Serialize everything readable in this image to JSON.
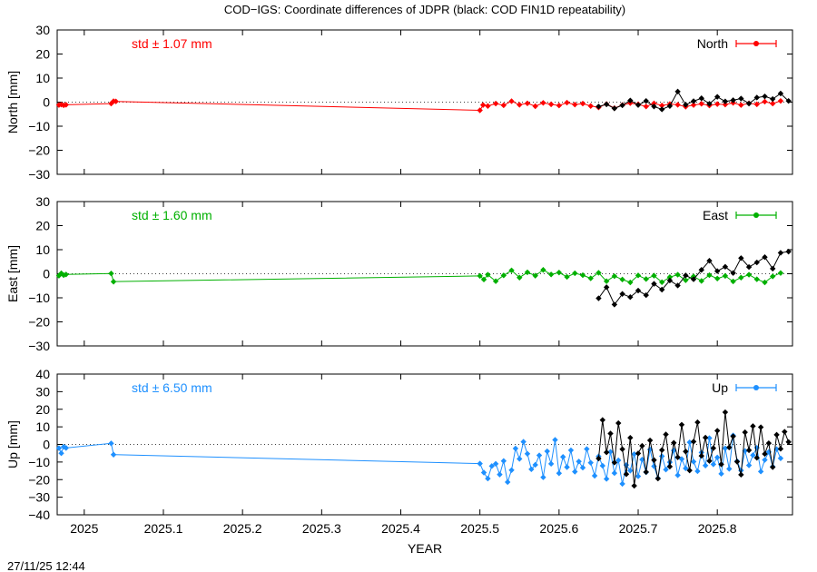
{
  "title": "COD−IGS: Coordinate differences of JDPR (black: COD FIN1D repeatability)",
  "timestamp": "27/11/25 12:44",
  "xlabel": "YEAR",
  "x_ticks": [
    "2025",
    "2025.1",
    "2025.2",
    "2025.3",
    "2025.4",
    "2025.5",
    "2025.6",
    "2025.7",
    "2025.8"
  ],
  "chart_data": [
    {
      "type": "line",
      "panel": "north",
      "ylabel": "North [mm]",
      "ylim": [
        -30,
        30
      ],
      "y_ticks": [
        "30",
        "20",
        "10",
        "0",
        "−10",
        "−20",
        "−30"
      ],
      "xlim": [
        2024.9658,
        2025.895
      ],
      "std_label": "std ± 1.07 mm",
      "legend": "North",
      "legend_position": "top-right",
      "zero_line": true,
      "color": "#ff0000",
      "series": [
        {
          "name": "North",
          "x": [
            2024.968,
            2024.971,
            2024.974,
            2024.977,
            2025.034,
            2025.037,
            2025.04,
            2025.5,
            2025.504,
            2025.51,
            2025.52,
            2025.53,
            2025.54,
            2025.55,
            2025.56,
            2025.57,
            2025.58,
            2025.59,
            2025.6,
            2025.61,
            2025.62,
            2025.63,
            2025.64,
            2025.65,
            2025.66,
            2025.67,
            2025.68,
            2025.69,
            2025.7,
            2025.71,
            2025.72,
            2025.73,
            2025.74,
            2025.75,
            2025.76,
            2025.77,
            2025.78,
            2025.79,
            2025.8,
            2025.81,
            2025.82,
            2025.83,
            2025.84,
            2025.85,
            2025.86,
            2025.87,
            2025.88
          ],
          "y": [
            -1.2,
            -1.0,
            -1.3,
            -1.1,
            -0.6,
            0.4,
            0.3,
            -3.4,
            -1.2,
            -1.6,
            -0.6,
            -1.3,
            0.4,
            -1.1,
            -0.5,
            -1.7,
            -0.3,
            -0.9,
            -1.4,
            -0.2,
            -1.0,
            -0.6,
            -1.6,
            -2.2,
            -0.8,
            -2.5,
            -1.2,
            -0.4,
            -0.9,
            -1.8,
            -0.5,
            -1.4,
            -0.8,
            -1.1,
            -1.9,
            -1.2,
            -0.7,
            -1.4,
            -0.8,
            -1.0,
            -0.3,
            -1.2,
            -0.5,
            -0.9,
            0.2,
            -0.6,
            0.5
          ]
        },
        {
          "name": "COD FIN1D repeatability",
          "color": "#000000",
          "x": [
            2025.65,
            2025.66,
            2025.67,
            2025.68,
            2025.69,
            2025.7,
            2025.71,
            2025.72,
            2025.73,
            2025.74,
            2025.75,
            2025.76,
            2025.77,
            2025.78,
            2025.79,
            2025.8,
            2025.81,
            2025.82,
            2025.83,
            2025.84,
            2025.85,
            2025.86,
            2025.87,
            2025.88,
            2025.89
          ],
          "y": [
            -1.8,
            -0.9,
            -2.6,
            -1.3,
            0.7,
            -1.2,
            0.5,
            -1.8,
            -3.0,
            -1.6,
            4.4,
            -1.1,
            0.4,
            1.6,
            -0.7,
            2.2,
            0.3,
            0.8,
            1.5,
            -0.6,
            1.9,
            2.4,
            1.3,
            3.6,
            0.5
          ]
        }
      ]
    },
    {
      "type": "line",
      "panel": "east",
      "ylabel": "East [mm]",
      "ylim": [
        -30,
        30
      ],
      "y_ticks": [
        "30",
        "20",
        "10",
        "0",
        "−10",
        "−20",
        "−30"
      ],
      "xlim": [
        2024.9658,
        2025.895
      ],
      "std_label": "std ± 1.60 mm",
      "legend": "East",
      "legend_position": "top-right",
      "zero_line": true,
      "color": "#00b000",
      "series": [
        {
          "name": "East",
          "x": [
            2024.968,
            2024.971,
            2024.974,
            2024.977,
            2025.034,
            2025.037,
            2025.5,
            2025.505,
            2025.51,
            2025.52,
            2025.53,
            2025.54,
            2025.55,
            2025.56,
            2025.57,
            2025.58,
            2025.59,
            2025.6,
            2025.61,
            2025.62,
            2025.63,
            2025.64,
            2025.65,
            2025.66,
            2025.67,
            2025.68,
            2025.69,
            2025.7,
            2025.71,
            2025.72,
            2025.73,
            2025.74,
            2025.75,
            2025.76,
            2025.77,
            2025.78,
            2025.79,
            2025.8,
            2025.81,
            2025.82,
            2025.83,
            2025.84,
            2025.85,
            2025.86,
            2025.87,
            2025.88
          ],
          "y": [
            -0.8,
            0.2,
            -0.6,
            -0.3,
            0.1,
            -3.3,
            -0.9,
            -2.4,
            -0.4,
            -3.1,
            -0.7,
            1.4,
            -1.6,
            0.6,
            -0.8,
            1.6,
            -0.3,
            0.5,
            -1.3,
            0.2,
            -0.6,
            -1.9,
            0.4,
            -3.1,
            -1.0,
            -2.4,
            -3.6,
            -0.7,
            -2.2,
            -0.8,
            -3.5,
            -1.4,
            -0.4,
            -2.7,
            -1.1,
            -3.0,
            -0.6,
            -2.0,
            -0.9,
            -3.2,
            -1.6,
            -0.4,
            -2.3,
            -3.6,
            -1.1,
            0.3
          ]
        },
        {
          "name": "COD FIN1D repeatability",
          "color": "#000000",
          "x": [
            2025.65,
            2025.66,
            2025.67,
            2025.68,
            2025.69,
            2025.7,
            2025.71,
            2025.72,
            2025.73,
            2025.74,
            2025.75,
            2025.76,
            2025.77,
            2025.78,
            2025.79,
            2025.8,
            2025.81,
            2025.82,
            2025.83,
            2025.84,
            2025.85,
            2025.86,
            2025.87,
            2025.88,
            2025.89
          ],
          "y": [
            -10.2,
            -5.6,
            -12.8,
            -8.4,
            -9.7,
            -7.0,
            -8.9,
            -4.2,
            -6.6,
            -2.8,
            -4.9,
            -0.7,
            -2.3,
            1.6,
            5.4,
            1.1,
            2.9,
            0.3,
            6.5,
            2.8,
            4.7,
            6.9,
            2.1,
            8.7,
            9.2
          ]
        }
      ]
    },
    {
      "type": "line",
      "panel": "up",
      "ylabel": "Up [mm]",
      "ylim": [
        -40,
        40
      ],
      "y_ticks": [
        "40",
        "30",
        "20",
        "10",
        "0",
        "−10",
        "−20",
        "−30",
        "−40"
      ],
      "xlim": [
        2024.9658,
        2025.895
      ],
      "std_label": "std ± 6.50 mm",
      "legend": "Up",
      "legend_position": "top-right",
      "zero_line": true,
      "color": "#1e90ff",
      "series": [
        {
          "name": "Up",
          "x": [
            2024.968,
            2024.971,
            2024.974,
            2024.977,
            2025.034,
            2025.037,
            2025.5,
            2025.505,
            2025.51,
            2025.515,
            2025.52,
            2025.525,
            2025.53,
            2025.535,
            2025.54,
            2025.545,
            2025.55,
            2025.555,
            2025.56,
            2025.565,
            2025.57,
            2025.575,
            2025.58,
            2025.585,
            2025.59,
            2025.595,
            2025.6,
            2025.605,
            2025.61,
            2025.615,
            2025.62,
            2025.625,
            2025.63,
            2025.635,
            2025.64,
            2025.645,
            2025.65,
            2025.655,
            2025.66,
            2025.665,
            2025.67,
            2025.675,
            2025.68,
            2025.685,
            2025.69,
            2025.695,
            2025.7,
            2025.705,
            2025.71,
            2025.715,
            2025.72,
            2025.725,
            2025.73,
            2025.735,
            2025.74,
            2025.745,
            2025.75,
            2025.755,
            2025.76,
            2025.765,
            2025.77,
            2025.775,
            2025.78,
            2025.785,
            2025.79,
            2025.795,
            2025.8,
            2025.805,
            2025.81,
            2025.815,
            2025.82,
            2025.825,
            2025.83,
            2025.835,
            2025.84,
            2025.845,
            2025.85,
            2025.855,
            2025.86,
            2025.865,
            2025.87,
            2025.875,
            2025.88
          ],
          "y": [
            -2.1,
            -5.0,
            -1.3,
            -2.0,
            0.6,
            -5.8,
            -10.9,
            -16.0,
            -19.4,
            -12.3,
            -11.0,
            -17.1,
            -9.4,
            -21.4,
            -14.6,
            -2.3,
            -8.2,
            1.5,
            -5.3,
            -14.1,
            -11.6,
            -6.2,
            -18.7,
            -3.9,
            -11.0,
            2.6,
            -16.4,
            -7.1,
            -12.9,
            -3.3,
            -15.5,
            -9.7,
            -13.2,
            -2.6,
            -10.4,
            -17.8,
            -6.8,
            -12.1,
            -19.6,
            -4.2,
            -16.3,
            -9.0,
            -22.4,
            -11.7,
            -14.9,
            -5.5,
            -18.1,
            -8.6,
            -15.8,
            -2.9,
            -12.4,
            -19.2,
            -6.7,
            -14.3,
            -10.1,
            -3.4,
            -17.5,
            -8.3,
            -13.6,
            1.2,
            -9.8,
            -15.2,
            -4.6,
            -12.0,
            3.6,
            -11.3,
            -7.4,
            -16.7,
            -2.2,
            -13.9,
            5.1,
            -9.5,
            -14.8,
            -3.7,
            -11.9,
            -6.1,
            -1.9,
            -15.4,
            -8.8,
            -4.3,
            -12.6,
            -2.7,
            -7.9
          ]
        },
        {
          "name": "COD FIN1D repeatability",
          "color": "#000000",
          "x": [
            2025.65,
            2025.655,
            2025.66,
            2025.665,
            2025.67,
            2025.675,
            2025.68,
            2025.685,
            2025.69,
            2025.695,
            2025.7,
            2025.705,
            2025.71,
            2025.715,
            2025.72,
            2025.725,
            2025.73,
            2025.735,
            2025.74,
            2025.745,
            2025.75,
            2025.755,
            2025.76,
            2025.765,
            2025.77,
            2025.775,
            2025.78,
            2025.785,
            2025.79,
            2025.795,
            2025.8,
            2025.805,
            2025.81,
            2025.815,
            2025.82,
            2025.825,
            2025.83,
            2025.835,
            2025.84,
            2025.845,
            2025.85,
            2025.855,
            2025.86,
            2025.865,
            2025.87,
            2025.875,
            2025.88,
            2025.885,
            2025.89
          ],
          "y": [
            -8.0,
            13.9,
            -4.5,
            6.2,
            -10.3,
            12.1,
            -2.7,
            -16.9,
            3.8,
            -23.5,
            -5.1,
            -0.8,
            -15.7,
            2.3,
            -8.9,
            -19.4,
            -3.2,
            5.7,
            -12.6,
            0.9,
            -7.3,
            11.2,
            -4.0,
            -14.8,
            1.6,
            12.6,
            -6.5,
            3.9,
            -9.4,
            -2.1,
            7.8,
            -11.3,
            18.3,
            -1.7,
            4.6,
            -9.8,
            -17.2,
            6.9,
            -3.3,
            10.4,
            -7.6,
            9.8,
            -5.4,
            0.7,
            -12.9,
            5.5,
            -2.5,
            7.2,
            1.4
          ]
        }
      ]
    }
  ]
}
